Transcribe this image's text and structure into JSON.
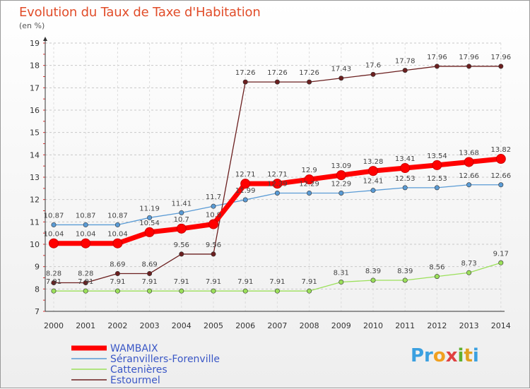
{
  "chart_data": {
    "type": "line",
    "title": "Evolution du Taux de Taxe d'Habitation",
    "subtitle": "(en %)",
    "categories": [
      "2000",
      "2001",
      "2002",
      "2003",
      "2004",
      "2005",
      "2006",
      "2007",
      "2008",
      "2009",
      "2010",
      "2011",
      "2012",
      "2013",
      "2014"
    ],
    "ylim": [
      7,
      19
    ],
    "yticks": [
      7,
      8,
      9,
      10,
      11,
      12,
      13,
      14,
      15,
      16,
      17,
      18,
      19
    ],
    "grid": "horizontal-dashed",
    "legend_position": "bottom-left",
    "series": [
      {
        "name": "WAMBAIX",
        "color": "#ff0000",
        "values": [
          10.04,
          10.04,
          10.04,
          10.54,
          10.7,
          10.9,
          12.71,
          12.71,
          12.9,
          13.09,
          13.28,
          13.41,
          13.54,
          13.68,
          13.82
        ],
        "labels": [
          "10.04",
          "10.04",
          "10.04",
          "10.54",
          "10.7",
          "10.9",
          "12.71",
          "12.71",
          "12.9",
          "13.09",
          "13.28",
          "13.41",
          "13.54",
          "13.68",
          "13.82"
        ]
      },
      {
        "name": "Séranvillers-Forenville",
        "color": "#5a9bd5",
        "values": [
          10.87,
          10.87,
          10.87,
          11.19,
          11.41,
          11.7,
          11.99,
          12.29,
          12.29,
          12.29,
          12.41,
          12.53,
          12.53,
          12.66,
          12.66
        ],
        "labels": [
          "10.87",
          "10.87",
          "10.87",
          "11.19",
          "11.41",
          "11.7",
          "11.99",
          "12.29",
          "12.29",
          "12.29",
          "12.41",
          "12.53",
          "12.53",
          "12.66",
          "12.66"
        ]
      },
      {
        "name": "Cattenières",
        "color": "#9be05a",
        "values": [
          7.91,
          7.91,
          7.91,
          7.91,
          7.91,
          7.91,
          7.91,
          7.91,
          7.91,
          8.31,
          8.39,
          8.39,
          8.56,
          8.73,
          9.17
        ],
        "labels": [
          "7.91",
          "7.91",
          "7.91",
          "7.91",
          "7.91",
          "7.91",
          "7.91",
          "7.91",
          "7.91",
          "8.31",
          "8.39",
          "8.39",
          "8.56",
          "8.73",
          "9.17"
        ]
      },
      {
        "name": "Estourmel",
        "color": "#6b1f1f",
        "values": [
          8.28,
          8.28,
          8.69,
          8.69,
          9.56,
          9.56,
          17.26,
          17.26,
          17.26,
          17.43,
          17.6,
          17.78,
          17.96,
          17.96,
          17.96
        ],
        "labels": [
          "8.28",
          "8.28",
          "8.69",
          "8.69",
          "9.56",
          "9.56",
          "17.26",
          "17.26",
          "17.26",
          "17.43",
          "17.6",
          "17.78",
          "17.96",
          "17.96",
          "17.96"
        ]
      }
    ]
  },
  "logo": {
    "text": "Proxiti"
  }
}
